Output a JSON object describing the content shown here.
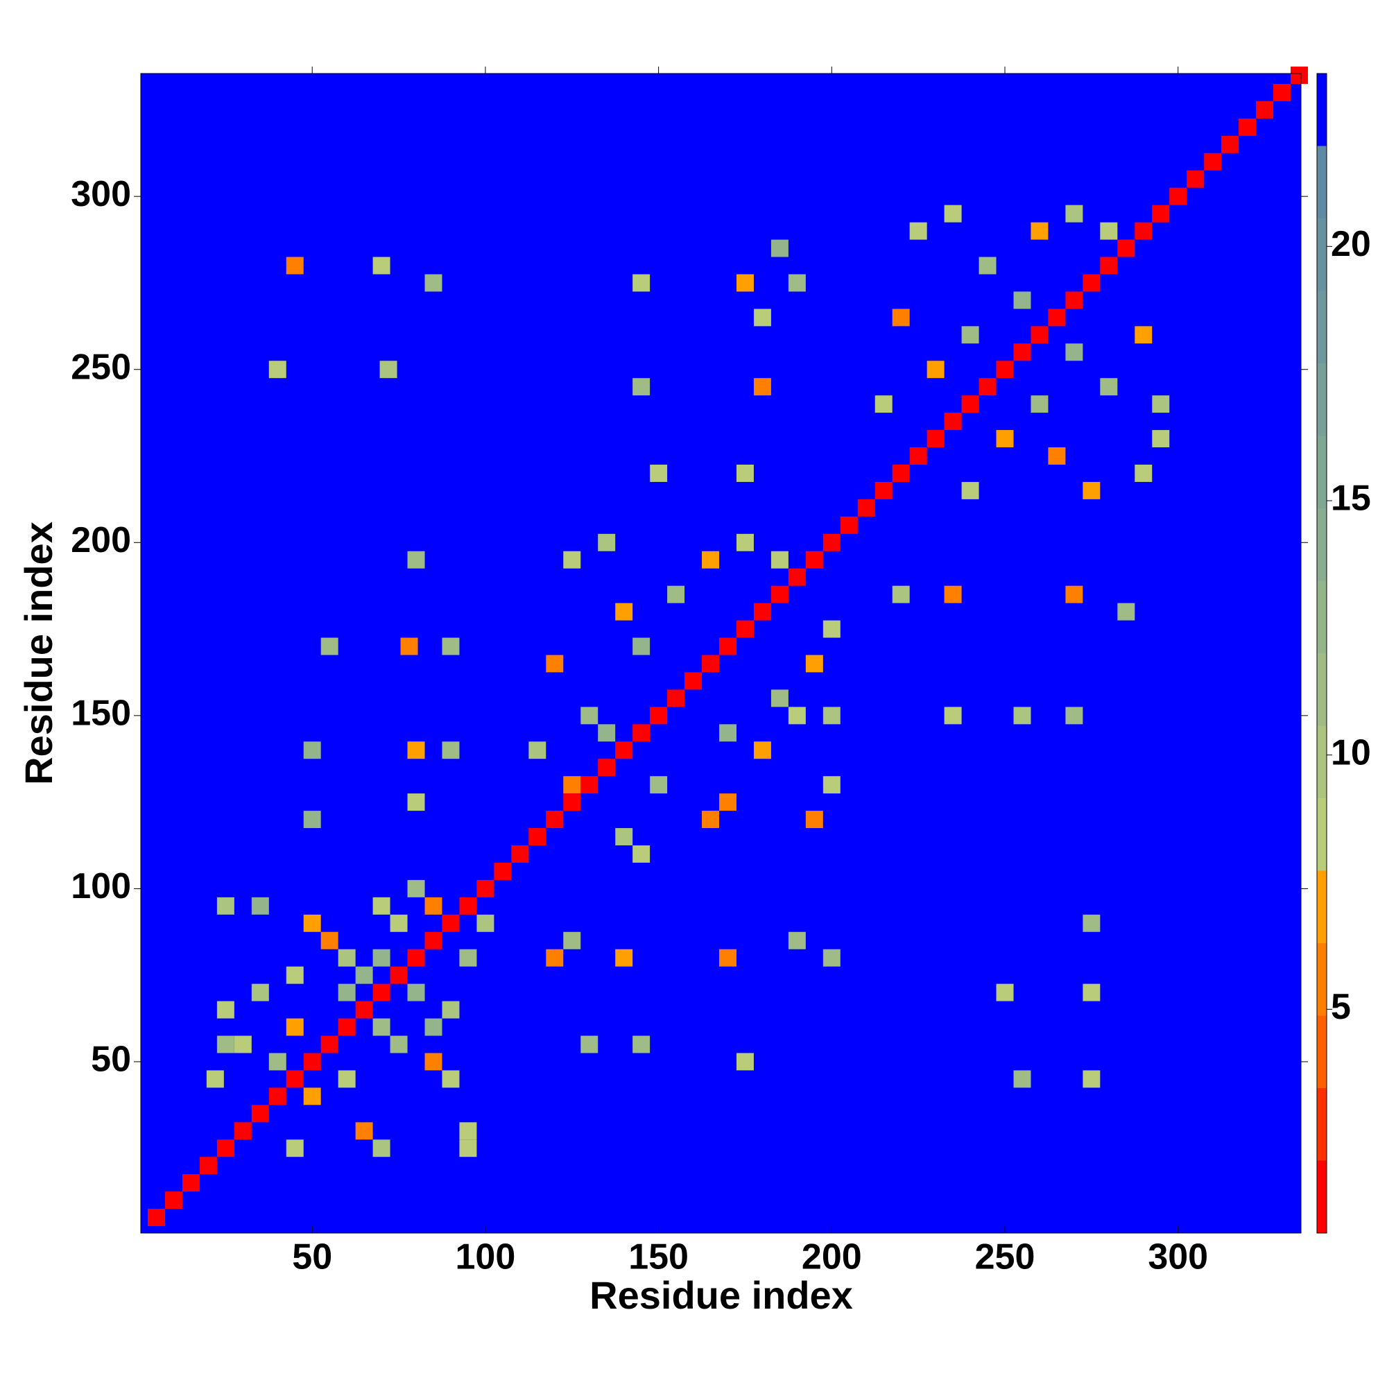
{
  "chart_data": {
    "type": "heatmap",
    "xlabel": "Residue index",
    "ylabel": "Residue index",
    "xlim": [
      0.5,
      335.5
    ],
    "ylim": [
      0.5,
      335.5
    ],
    "xticks": [
      50,
      100,
      150,
      200,
      250,
      300
    ],
    "yticks": [
      50,
      100,
      150,
      200,
      250,
      300
    ],
    "background": "#0000ff",
    "colorbar": {
      "lim": [
        0.6,
        23.4
      ],
      "ticks": [
        5,
        10,
        15,
        20
      ],
      "boundaries": [
        0.6,
        2.025,
        3.45,
        4.875,
        6.3,
        7.725,
        9.15,
        10.575,
        12.0,
        13.425,
        14.85,
        16.275,
        17.7,
        19.125,
        20.55,
        21.975,
        23.4
      ],
      "colors": [
        "#ff0000",
        "#ff3000",
        "#ff6000",
        "#ff8000",
        "#ffa000",
        "#b8cc7a",
        "#abc480",
        "#9fbc86",
        "#94b48b",
        "#8aad90",
        "#80a694",
        "#789f98",
        "#70989c",
        "#6891a0",
        "#608aa4",
        "#0000ff"
      ]
    },
    "cells": {
      "x": [
        25,
        35,
        25,
        35,
        45,
        50,
        55,
        60,
        65,
        70,
        75,
        80,
        85,
        22,
        30,
        40,
        45,
        60,
        70,
        25,
        45,
        50,
        65,
        70,
        60,
        85,
        90,
        95,
        95,
        85,
        75,
        90,
        70,
        80,
        95,
        100,
        115,
        120,
        125,
        135,
        140,
        145,
        130,
        155,
        165,
        175,
        185,
        125,
        135,
        140,
        165,
        195,
        200,
        180,
        170,
        150,
        185,
        195,
        200,
        170,
        190,
        200,
        145,
        215,
        220,
        225,
        235,
        245,
        255,
        260,
        270,
        280,
        240,
        230,
        240,
        265,
        290,
        295,
        280,
        270,
        290,
        295,
        275,
        260,
        250,
        45,
        40,
        70,
        72,
        85,
        80,
        55,
        78,
        90,
        50,
        80,
        80,
        50,
        90,
        145,
        145,
        150,
        175,
        180,
        190,
        180,
        175,
        185,
        220,
        235,
        270,
        285,
        235,
        255,
        270,
        250,
        275,
        275,
        255,
        275,
        120,
        140,
        130,
        145,
        170,
        175,
        200,
        190,
        125,
        5,
        10,
        15,
        20,
        25,
        30,
        35,
        40,
        45,
        50,
        55,
        60,
        65,
        70,
        75,
        80,
        85,
        90,
        95,
        100,
        105,
        110,
        115,
        120,
        125,
        130,
        135,
        140,
        145,
        150,
        155,
        160,
        165,
        170,
        175,
        180,
        185,
        190,
        195,
        200,
        205,
        210,
        215,
        220,
        225,
        230,
        235,
        240,
        245,
        250,
        255,
        260,
        265,
        270,
        275,
        280,
        285,
        290,
        295,
        300,
        305,
        310,
        315,
        320,
        325,
        330,
        335
      ],
      "y": [
        95,
        95,
        65,
        70,
        75,
        90,
        85,
        80,
        75,
        95,
        90,
        100,
        95,
        45,
        55,
        50,
        60,
        70,
        80,
        55,
        25,
        40,
        30,
        25,
        45,
        50,
        45,
        30,
        25,
        60,
        55,
        65,
        60,
        70,
        80,
        90,
        140,
        165,
        195,
        200,
        180,
        170,
        150,
        185,
        195,
        200,
        195,
        130,
        145,
        115,
        120,
        120,
        130,
        140,
        145,
        130,
        155,
        165,
        175,
        125,
        150,
        150,
        110,
        240,
        265,
        290,
        295,
        280,
        270,
        290,
        295,
        290,
        260,
        250,
        215,
        225,
        220,
        230,
        245,
        255,
        260,
        240,
        215,
        240,
        230,
        280,
        250,
        280,
        250,
        275,
        195,
        170,
        170,
        170,
        140,
        140,
        125,
        120,
        140,
        275,
        245,
        220,
        275,
        265,
        275,
        245,
        220,
        285,
        185,
        185,
        185,
        180,
        150,
        150,
        150,
        70,
        70,
        90,
        45,
        45,
        80,
        80,
        55,
        55,
        80,
        50,
        80,
        85,
        85,
        5,
        10,
        15,
        20,
        25,
        30,
        35,
        40,
        45,
        50,
        55,
        60,
        65,
        70,
        75,
        80,
        85,
        90,
        95,
        100,
        105,
        110,
        115,
        120,
        125,
        130,
        135,
        140,
        145,
        150,
        155,
        160,
        165,
        170,
        175,
        180,
        185,
        190,
        195,
        200,
        205,
        210,
        215,
        220,
        225,
        230,
        235,
        240,
        245,
        250,
        255,
        260,
        265,
        270,
        275,
        280,
        285,
        290,
        295,
        300,
        305,
        310,
        315,
        320,
        325,
        330,
        335
      ],
      "values": [
        10,
        13,
        9,
        10,
        8,
        7,
        6,
        10,
        13,
        9,
        8,
        11,
        6,
        8,
        8,
        12,
        7,
        13,
        13,
        11,
        9,
        7,
        6,
        10,
        8,
        6,
        8,
        9,
        8,
        13,
        12,
        10,
        12,
        13,
        11,
        10,
        10,
        6,
        9,
        10,
        7,
        13,
        12,
        12,
        7,
        9,
        8,
        5,
        13,
        10,
        6,
        5,
        9,
        7,
        13,
        12,
        12,
        7,
        9,
        6,
        8,
        10,
        8,
        8,
        6,
        9,
        8,
        11,
        13,
        7,
        10,
        8,
        12,
        7,
        8,
        6,
        9,
        8,
        11,
        13,
        7,
        10,
        7,
        12,
        7,
        6,
        9,
        8,
        10,
        12,
        11,
        12,
        6,
        11,
        13,
        7,
        8,
        13,
        12,
        9,
        11,
        8,
        7,
        8,
        12,
        6,
        9,
        13,
        10,
        6,
        5,
        12,
        9,
        10,
        11,
        9,
        8,
        11,
        12,
        8,
        5,
        7,
        12,
        11,
        6,
        9,
        11,
        12,
        12,
        1.5,
        1.5,
        1.5,
        1.5,
        1.5,
        1.5,
        1.5,
        1.5,
        1.5,
        1.5,
        1.5,
        1.5,
        1.5,
        1.5,
        1.5,
        1.5,
        1.5,
        1.5,
        1.5,
        1.5,
        1.5,
        1.5,
        1.5,
        1.5,
        1.5,
        1.5,
        1.5,
        1.5,
        1.5,
        1.5,
        1.5,
        1.5,
        1.5,
        1.5,
        1.5,
        1.5,
        1.5,
        1.5,
        1.5,
        1.5,
        1.5,
        1.5,
        1.5,
        1.5,
        1.5,
        1.5,
        1.5,
        1.5,
        1.5,
        1.5,
        1.5,
        1.5,
        1.5,
        1.5,
        1.5,
        1.5,
        1.5,
        1.5,
        1.5,
        1.5,
        1.5,
        1.5,
        1.5,
        1.5,
        1.5,
        1.5,
        1.5
      ]
    }
  }
}
